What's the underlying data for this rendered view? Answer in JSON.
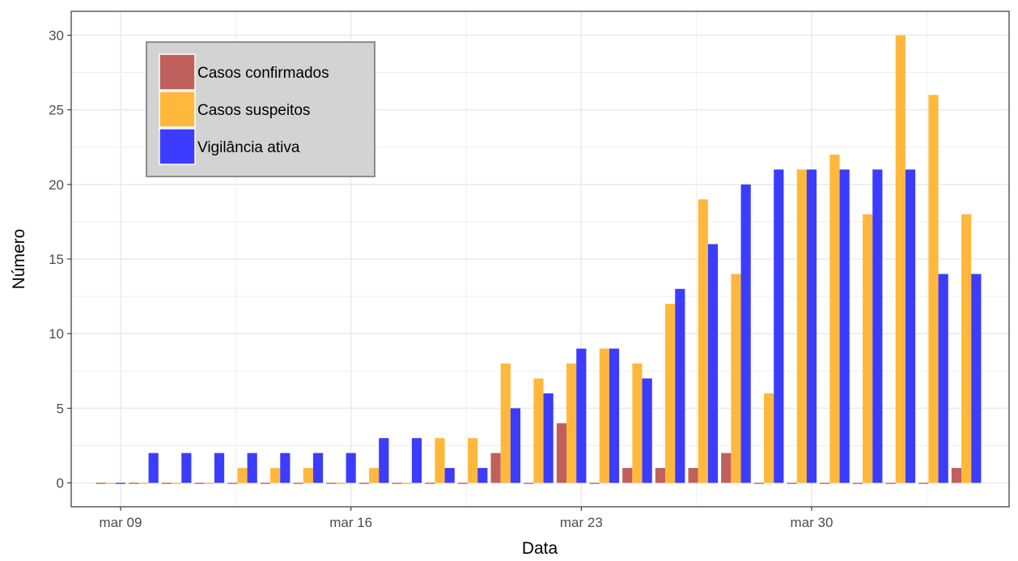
{
  "chart_data": {
    "type": "bar",
    "xlabel": "Data",
    "ylabel": "Número",
    "ylim": [
      -1.6,
      31.6
    ],
    "yticks": [
      0,
      5,
      10,
      15,
      20,
      25,
      30
    ],
    "x_tick_labels": [
      "mar 09",
      "mar 16",
      "mar 23",
      "mar 30"
    ],
    "x_tick_dates": [
      "2020-03-09",
      "2020-03-16",
      "2020-03-23",
      "2020-03-30"
    ],
    "categories": [
      "2020-03-09",
      "2020-03-10",
      "2020-03-11",
      "2020-03-12",
      "2020-03-13",
      "2020-03-14",
      "2020-03-15",
      "2020-03-16",
      "2020-03-17",
      "2020-03-18",
      "2020-03-19",
      "2020-03-20",
      "2020-03-21",
      "2020-03-22",
      "2020-03-23",
      "2020-03-24",
      "2020-03-25",
      "2020-03-26",
      "2020-03-27",
      "2020-03-28",
      "2020-03-29",
      "2020-03-30",
      "2020-03-31",
      "2020-04-01",
      "2020-04-02",
      "2020-04-03",
      "2020-04-04"
    ],
    "series": [
      {
        "name": "Casos confirmados",
        "color": "#c0605c",
        "values": [
          0,
          0,
          0,
          0,
          0,
          0,
          0,
          0,
          0,
          0,
          0,
          0,
          2,
          0,
          4,
          0,
          1,
          1,
          1,
          2,
          0,
          0,
          0,
          0,
          0,
          0,
          1
        ]
      },
      {
        "name": "Casos suspeitos",
        "color": "#ffb83c",
        "values": [
          0,
          0,
          0,
          0,
          1,
          1,
          1,
          0,
          1,
          0,
          3,
          3,
          8,
          7,
          8,
          9,
          8,
          12,
          19,
          14,
          6,
          21,
          22,
          18,
          30,
          26,
          18
        ]
      },
      {
        "name": "Vigilância ativa",
        "color": "#3c3cff",
        "values": [
          0,
          2,
          2,
          2,
          2,
          2,
          2,
          2,
          3,
          3,
          1,
          1,
          5,
          6,
          9,
          9,
          7,
          13,
          16,
          20,
          21,
          21,
          21,
          21,
          21,
          14,
          14
        ]
      }
    ],
    "grid": true,
    "legend_position": "top-left"
  }
}
